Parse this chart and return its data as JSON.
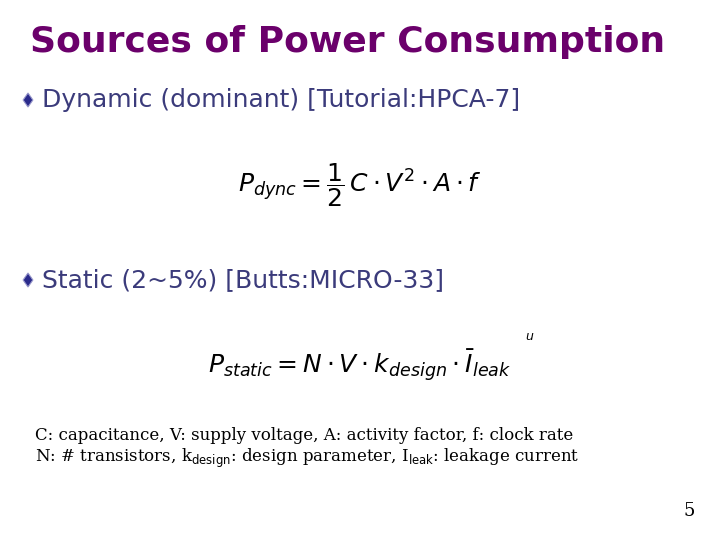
{
  "title": "Sources of Power Consumption",
  "title_color": "#6B006B",
  "title_fontsize": 26,
  "bullet_color": "#3B3B7B",
  "bullet1_text": "Dynamic (dominant) [Tutorial:HPCA-7]",
  "bullet2_text": "Static (2~5%) [Butts:MICRO-33]",
  "bullet_fontsize": 18,
  "formula_fontsize": 18,
  "note_fontsize": 12,
  "page_number": "5",
  "background_color": "#FFFFFF",
  "diamond_color": "#2B2B8B",
  "diamond_fill": "#2B2B8B"
}
